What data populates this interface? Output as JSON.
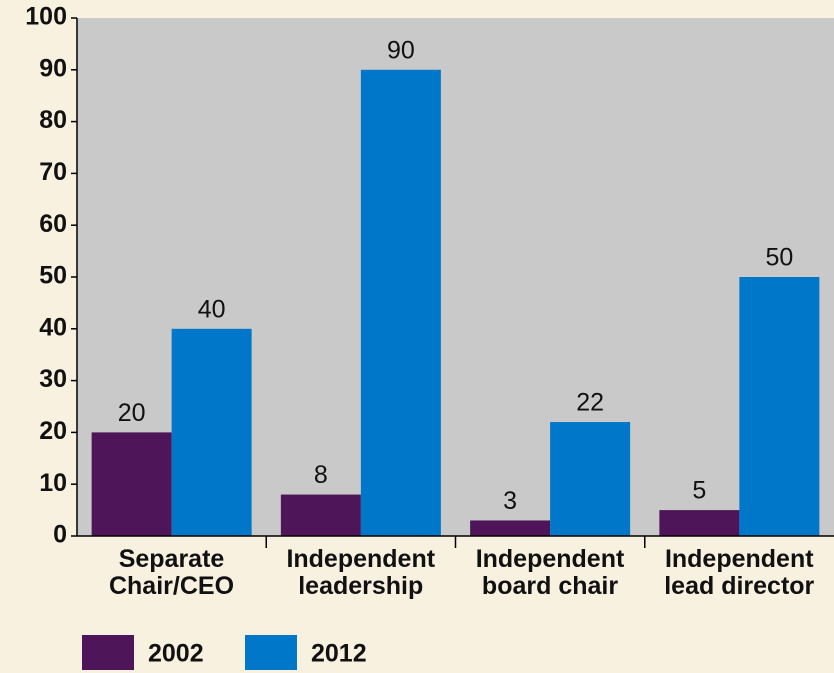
{
  "chart_data": {
    "type": "bar",
    "categories": [
      "Separate\nChair/CEO",
      "Independent\nleadership",
      "Independent\nboard chair",
      "Independent\nlead director"
    ],
    "series": [
      {
        "name": "2002",
        "color": "#4e1658",
        "values": [
          20,
          8,
          3,
          5
        ]
      },
      {
        "name": "2012",
        "color": "#0077c8",
        "values": [
          40,
          90,
          22,
          50
        ]
      }
    ],
    "ylim": [
      0,
      100
    ],
    "yticks": [
      0,
      10,
      20,
      30,
      40,
      50,
      60,
      70,
      80,
      90,
      100
    ],
    "grid": false,
    "legend": "bottom"
  }
}
